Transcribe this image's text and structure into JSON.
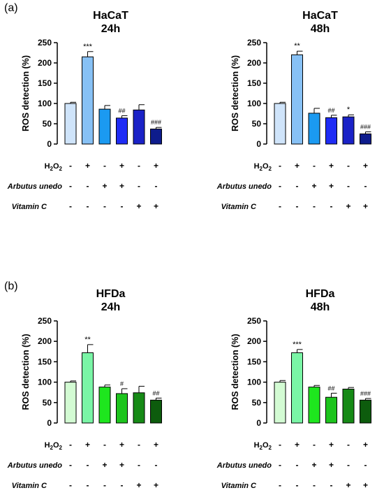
{
  "panels": [
    {
      "label": "(a)"
    },
    {
      "label": "(b)"
    }
  ],
  "conditions": {
    "labels": [
      "H2O2",
      "Arbutus unedo",
      "Vitamin C"
    ],
    "h2o2": [
      "-",
      "+",
      "-",
      "+",
      "-",
      "+"
    ],
    "arbutus": [
      "-",
      "-",
      "+",
      "+",
      "-",
      "-"
    ],
    "vitc": [
      "-",
      "-",
      "-",
      "-",
      "+",
      "+"
    ]
  },
  "chart_data": [
    {
      "type": "bar",
      "title": "HaCaT",
      "subtitle": "24h",
      "ylabel": "ROS detection (%)",
      "ylim": [
        0,
        250
      ],
      "yticks": [
        0,
        50,
        100,
        150,
        200,
        250
      ],
      "categories": [
        "1",
        "2",
        "3",
        "4",
        "5",
        "6"
      ],
      "values": [
        100,
        215,
        86,
        64,
        84,
        37
      ],
      "errors": [
        3,
        13,
        9,
        6,
        13,
        4
      ],
      "annotations": [
        "",
        "***",
        "",
        "##",
        "",
        "###"
      ],
      "colors": [
        "#cfe4fa",
        "#87c1f5",
        "#1b9af1",
        "#1f2cf5",
        "#1a22c7",
        "#0e1c8c"
      ]
    },
    {
      "type": "bar",
      "title": "HaCaT",
      "subtitle": "48h",
      "ylabel": "ROS detection (%)",
      "ylim": [
        0,
        250
      ],
      "yticks": [
        0,
        50,
        100,
        150,
        200,
        250
      ],
      "categories": [
        "1",
        "2",
        "3",
        "4",
        "5",
        "6"
      ],
      "values": [
        100,
        220,
        76,
        65,
        67,
        25
      ],
      "errors": [
        3,
        9,
        12,
        6,
        5,
        5
      ],
      "annotations": [
        "",
        "**",
        "",
        "##",
        "*",
        "###"
      ],
      "colors": [
        "#cfe4fa",
        "#87c1f5",
        "#1b9af1",
        "#1f2cf5",
        "#1a22c7",
        "#0e1c8c"
      ]
    },
    {
      "type": "bar",
      "title": "HFDa",
      "subtitle": "24h",
      "ylabel": "ROS detection (%)",
      "ylim": [
        0,
        250
      ],
      "yticks": [
        0,
        50,
        100,
        150,
        200,
        250
      ],
      "categories": [
        "1",
        "2",
        "3",
        "4",
        "5",
        "6"
      ],
      "values": [
        100,
        172,
        88,
        72,
        74,
        56
      ],
      "errors": [
        3,
        20,
        5,
        12,
        16,
        5
      ],
      "annotations": [
        "",
        "**",
        "",
        "#",
        "",
        "##"
      ],
      "colors": [
        "#d3fbd3",
        "#7af5a6",
        "#1ee61e",
        "#1dc41d",
        "#168a16",
        "#0d5c0d"
      ]
    },
    {
      "type": "bar",
      "title": "HFDa",
      "subtitle": "48h",
      "ylabel": "ROS detection (%)",
      "ylim": [
        0,
        250
      ],
      "yticks": [
        0,
        50,
        100,
        150,
        200,
        250
      ],
      "categories": [
        "1",
        "2",
        "3",
        "4",
        "5",
        "6"
      ],
      "values": [
        100,
        172,
        88,
        63,
        83,
        56
      ],
      "errors": [
        4,
        8,
        4,
        10,
        4,
        4
      ],
      "annotations": [
        "",
        "***",
        "",
        "##",
        "",
        "###"
      ],
      "colors": [
        "#d3fbd3",
        "#7af5a6",
        "#1ee61e",
        "#1dc41d",
        "#168a16",
        "#0d5c0d"
      ]
    }
  ]
}
